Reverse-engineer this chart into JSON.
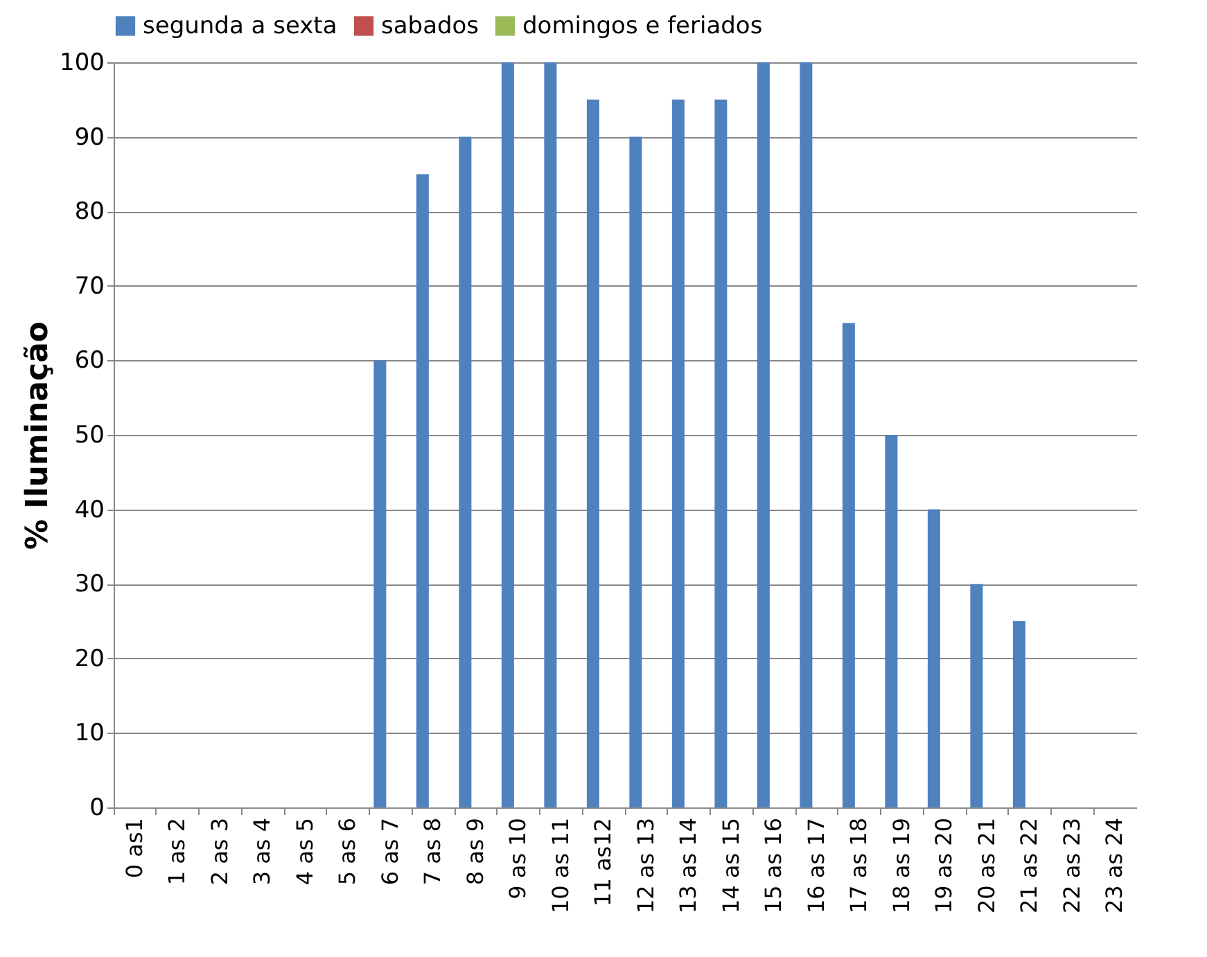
{
  "chart_data": {
    "type": "bar",
    "ylabel": "% Iluminação",
    "categories": [
      "0 as1",
      "1 as 2",
      "2 as 3",
      "3 as 4",
      "4 as 5",
      "5 as 6",
      "6 as 7",
      "7 as 8",
      "8 as 9",
      "9 as 10",
      "10 as 11",
      "11 as12",
      "12 as 13",
      "13 as 14",
      "14 as 15",
      "15 as 16",
      "16 as 17",
      "17 as 18",
      "18 as 19",
      "19 as 20",
      "20 as 21",
      "21 as 22",
      "22 as 23",
      "23 as 24"
    ],
    "series": [
      {
        "name": "segunda a sexta",
        "color": "#4f81bd",
        "values": [
          0,
          0,
          0,
          0,
          0,
          0,
          60,
          85,
          90,
          100,
          100,
          95,
          90,
          95,
          95,
          100,
          100,
          65,
          50,
          40,
          30,
          25,
          0,
          0
        ]
      },
      {
        "name": "sabados",
        "color": "#c0504d",
        "values": [
          0,
          0,
          0,
          0,
          0,
          0,
          0,
          0,
          0,
          0,
          0,
          0,
          0,
          0,
          0,
          0,
          0,
          0,
          0,
          0,
          0,
          0,
          0,
          0
        ]
      },
      {
        "name": "domingos e feriados",
        "color": "#9bbb59",
        "values": [
          0,
          0,
          0,
          0,
          0,
          0,
          0,
          0,
          0,
          0,
          0,
          0,
          0,
          0,
          0,
          0,
          0,
          0,
          0,
          0,
          0,
          0,
          0,
          0
        ]
      }
    ],
    "ylim": [
      0,
      100
    ],
    "yticks": [
      0,
      10,
      20,
      30,
      40,
      50,
      60,
      70,
      80,
      90,
      100
    ],
    "grid": "y",
    "legend": "top"
  }
}
